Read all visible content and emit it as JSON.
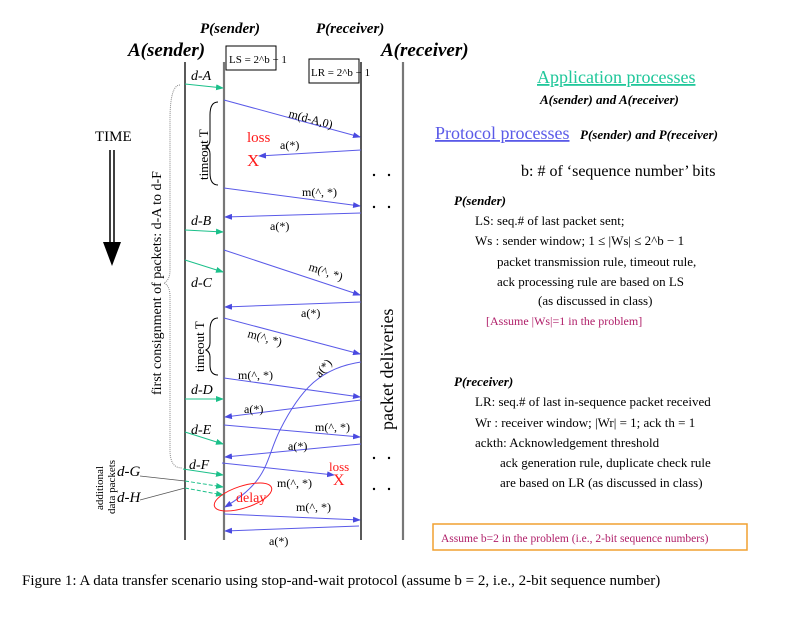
{
  "headers": {
    "p_sender": "P(sender)",
    "p_receiver": "P(receiver)",
    "a_sender": "A(sender)",
    "a_receiver": "A(receiver)",
    "ls_box": "LS = 2^b − 1",
    "lr_box": "LR = 2^b − 1"
  },
  "left": {
    "time": "TIME",
    "consignment": "first consignment of packets:  d-A  to  d-F",
    "additional_1": "additional",
    "additional_2": "data packets",
    "d_g": "d-G",
    "d_h": "d-H",
    "timeout_1": "timeout T",
    "timeout_2": "timeout T"
  },
  "data_labels": {
    "d_a": "d-A",
    "d_b": "d-B",
    "d_c": "d-C",
    "d_d": "d-D",
    "d_e": "d-E",
    "d_f": "d-F"
  },
  "messages": {
    "m1": "m(d-A,0)",
    "m2": "m(^, *)",
    "m3": "m(^, *)",
    "m4": "m(^, *)",
    "m5": "m(^, *)",
    "m6": "m(^, *)",
    "m7": "m(^, *)",
    "m8": "m(^, *)",
    "a1": "a(*)",
    "a2": "a(*)",
    "a3": "a(*)",
    "a4": "a(*)",
    "a5": "a(*)",
    "a6": "a(*)",
    "a7": "a(*)"
  },
  "events": {
    "loss1": "loss",
    "x1": "X",
    "loss2": "loss",
    "x2": "X",
    "delay": "delay"
  },
  "deliveries": "packet   deliveries",
  "right": {
    "app_title": "Application processes",
    "app_sub": "A(sender)  and  A(receiver)",
    "proto_title": "Protocol processes",
    "proto_sub": "P(sender)  and  P(receiver)",
    "b_def": "b: # of ‘sequence number’ bits",
    "ps_title": "P(sender)",
    "ps_ls": "LS: seq.# of last packet sent;",
    "ps_ws": "Ws : sender window;   1 ≤ |Ws| ≤ 2^b − 1",
    "ps_l1": "packet transmission rule, timeout rule,",
    "ps_l2": "ack processing rule are based on LS",
    "ps_l3": "(as discussed in class)",
    "ps_assume": "[Assume |Ws|=1 in the problem]",
    "pr_title": "P(receiver)",
    "pr_lr": "LR: seq.# of last in-sequence packet received",
    "pr_wr": "Wr : receiver window;  |Wr| = 1;   ack th = 1",
    "pr_ack": "ackth:  Acknowledgement threshold",
    "pr_l1": "ack generation rule, duplicate check rule",
    "pr_l2": "are based on LR (as discussed in class)",
    "assume_b": "Assume b=2 in the problem (i.e., 2-bit sequence numbers)"
  },
  "caption": "Figure 1: A data transfer scenario using stop-and-wait protocol (assume b = 2, i.e., 2-bit sequence number)",
  "colors": {
    "app": "#1fc79a",
    "protocol": "#5a5ae8",
    "loss": "#ff1a1a",
    "assume": "#b0206a",
    "box_border": "#f0a030",
    "message": "#5a5ae8",
    "data": "#1cc08a"
  }
}
